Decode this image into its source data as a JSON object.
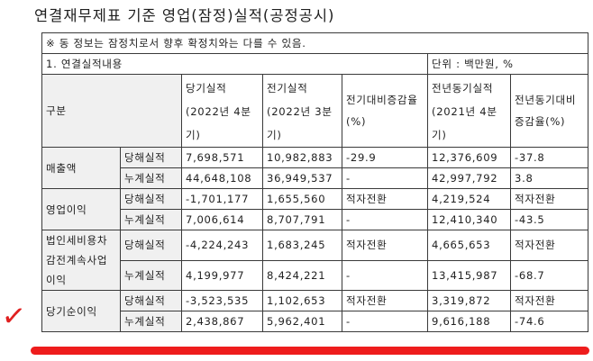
{
  "title": "연결재무제표 기준 영업(잠정)실적(공정공시)",
  "notice": "※ 동 정보는 잠정치로서 향후 확정치와는 다를 수 있음.",
  "section_label": "1. 연결실적내용",
  "unit_label": "단위 : 백만원, %",
  "header": {
    "category": "구분",
    "current_label": "당기실적",
    "current_period": "(2022년 4분기)",
    "previous_label": "전기실적",
    "previous_period": "(2022년 3분기)",
    "qoq_change": "전기대비증감율(%)",
    "yoy_label": "전년동기실적",
    "yoy_period": "(2021년 4분기)",
    "yoy_change": "전년동기대비증감율(%)"
  },
  "groups": [
    {
      "name": "매출액",
      "rows": [
        {
          "type": "당해실적",
          "current": "7,698,571",
          "previous": "10,982,883",
          "qoq": "-29.9",
          "yoy": "12,376,609",
          "yoy_change": "-37.8"
        },
        {
          "type": "누계실적",
          "current": "44,648,108",
          "previous": "36,949,537",
          "qoq": "-",
          "yoy": "42,997,792",
          "yoy_change": "3.8"
        }
      ]
    },
    {
      "name": "영업이익",
      "rows": [
        {
          "type": "당해실적",
          "current": "-1,701,177",
          "previous": "1,655,560",
          "qoq": "적자전환",
          "yoy": "4,219,524",
          "yoy_change": "적자전환"
        },
        {
          "type": "누계실적",
          "current": "7,006,614",
          "previous": "8,707,791",
          "qoq": "-",
          "yoy": "12,410,340",
          "yoy_change": "-43.5"
        }
      ]
    },
    {
      "name": "법인세비용차감전계속사업이익",
      "rows": [
        {
          "type": "당해실적",
          "current": "-4,224,243",
          "previous": "1,683,245",
          "qoq": "적자전환",
          "yoy": "4,665,653",
          "yoy_change": "적자전환"
        },
        {
          "type": "누계실적",
          "current": "4,199,977",
          "previous": "8,424,221",
          "qoq": "-",
          "yoy": "13,415,987",
          "yoy_change": "-68.7"
        }
      ]
    },
    {
      "name": "당기순이익",
      "rows": [
        {
          "type": "당해실적",
          "current": "-3,523,535",
          "previous": "1,102,653",
          "qoq": "적자전환",
          "yoy": "3,319,872",
          "yoy_change": "적자전환"
        },
        {
          "type": "누계실적",
          "current": "2,438,867",
          "previous": "5,962,401",
          "qoq": "-",
          "yoy": "9,616,188",
          "yoy_change": "-74.6"
        }
      ]
    }
  ],
  "annotations": {
    "mark_color": "#e02020",
    "underline_color": "#ee1c1c"
  }
}
